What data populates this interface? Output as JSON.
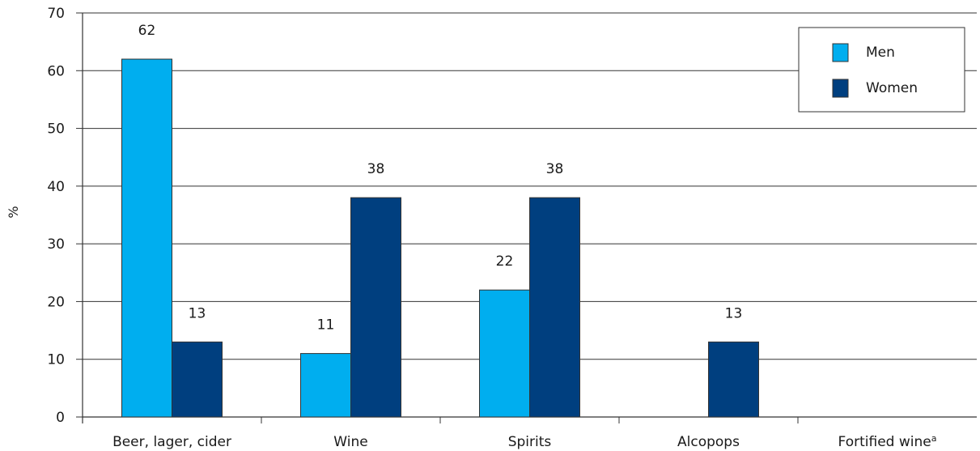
{
  "chart_data": {
    "type": "bar",
    "title": "",
    "xlabel": "",
    "ylabel": "%",
    "ylim": [
      0,
      70
    ],
    "yticks": [
      0,
      10,
      20,
      30,
      40,
      50,
      60,
      70
    ],
    "grid": true,
    "legend_position": "top-right",
    "categories": [
      "Beer, lager, cider",
      "Wine",
      "Spirits",
      "Alcopops",
      "Fortified wine"
    ],
    "category_superscripts": [
      "",
      "",
      "",
      "",
      "a"
    ],
    "series": [
      {
        "name": "Men",
        "color": "#00aeef",
        "values": [
          62,
          11,
          22,
          0,
          0
        ],
        "labels": [
          "62",
          "11",
          "22",
          "",
          ""
        ]
      },
      {
        "name": "Women",
        "color": "#003f7f",
        "values": [
          13,
          38,
          38,
          13,
          0
        ],
        "labels": [
          "13",
          "38",
          "38",
          "13",
          ""
        ]
      }
    ]
  }
}
